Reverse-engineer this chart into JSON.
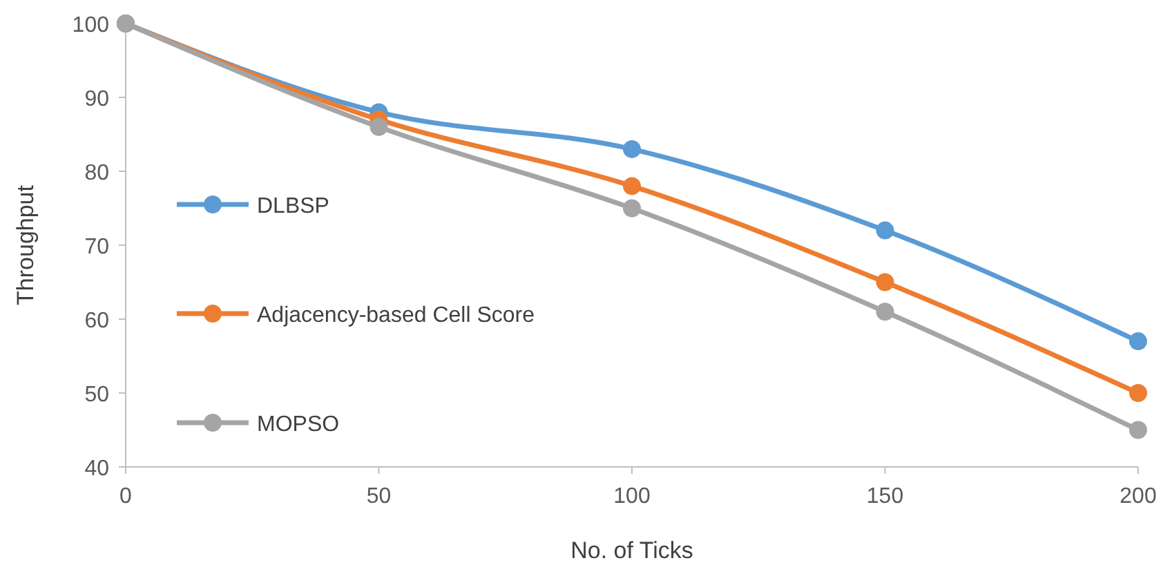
{
  "chart_data": {
    "type": "line",
    "xlabel": "No. of Ticks",
    "ylabel": "Throughput",
    "x": [
      0,
      50,
      100,
      150,
      200
    ],
    "series": [
      {
        "name": "DLBSP",
        "color": "#5b9bd5",
        "values": [
          100,
          88,
          83,
          72,
          57
        ]
      },
      {
        "name": "Adjacency-based Cell Score",
        "color": "#ed7d31",
        "values": [
          100,
          87,
          78,
          65,
          50
        ]
      },
      {
        "name": "MOPSO",
        "color": "#a5a5a5",
        "values": [
          100,
          86,
          75,
          61,
          45
        ]
      }
    ],
    "xlim": [
      0,
      200
    ],
    "xticks": [
      0,
      50,
      100,
      150,
      200
    ],
    "ylim": [
      40,
      100
    ],
    "yticks": [
      40,
      50,
      60,
      70,
      80,
      90,
      100
    ],
    "marker": "circle",
    "line_style": "solid",
    "legend": "left",
    "grid": false
  }
}
